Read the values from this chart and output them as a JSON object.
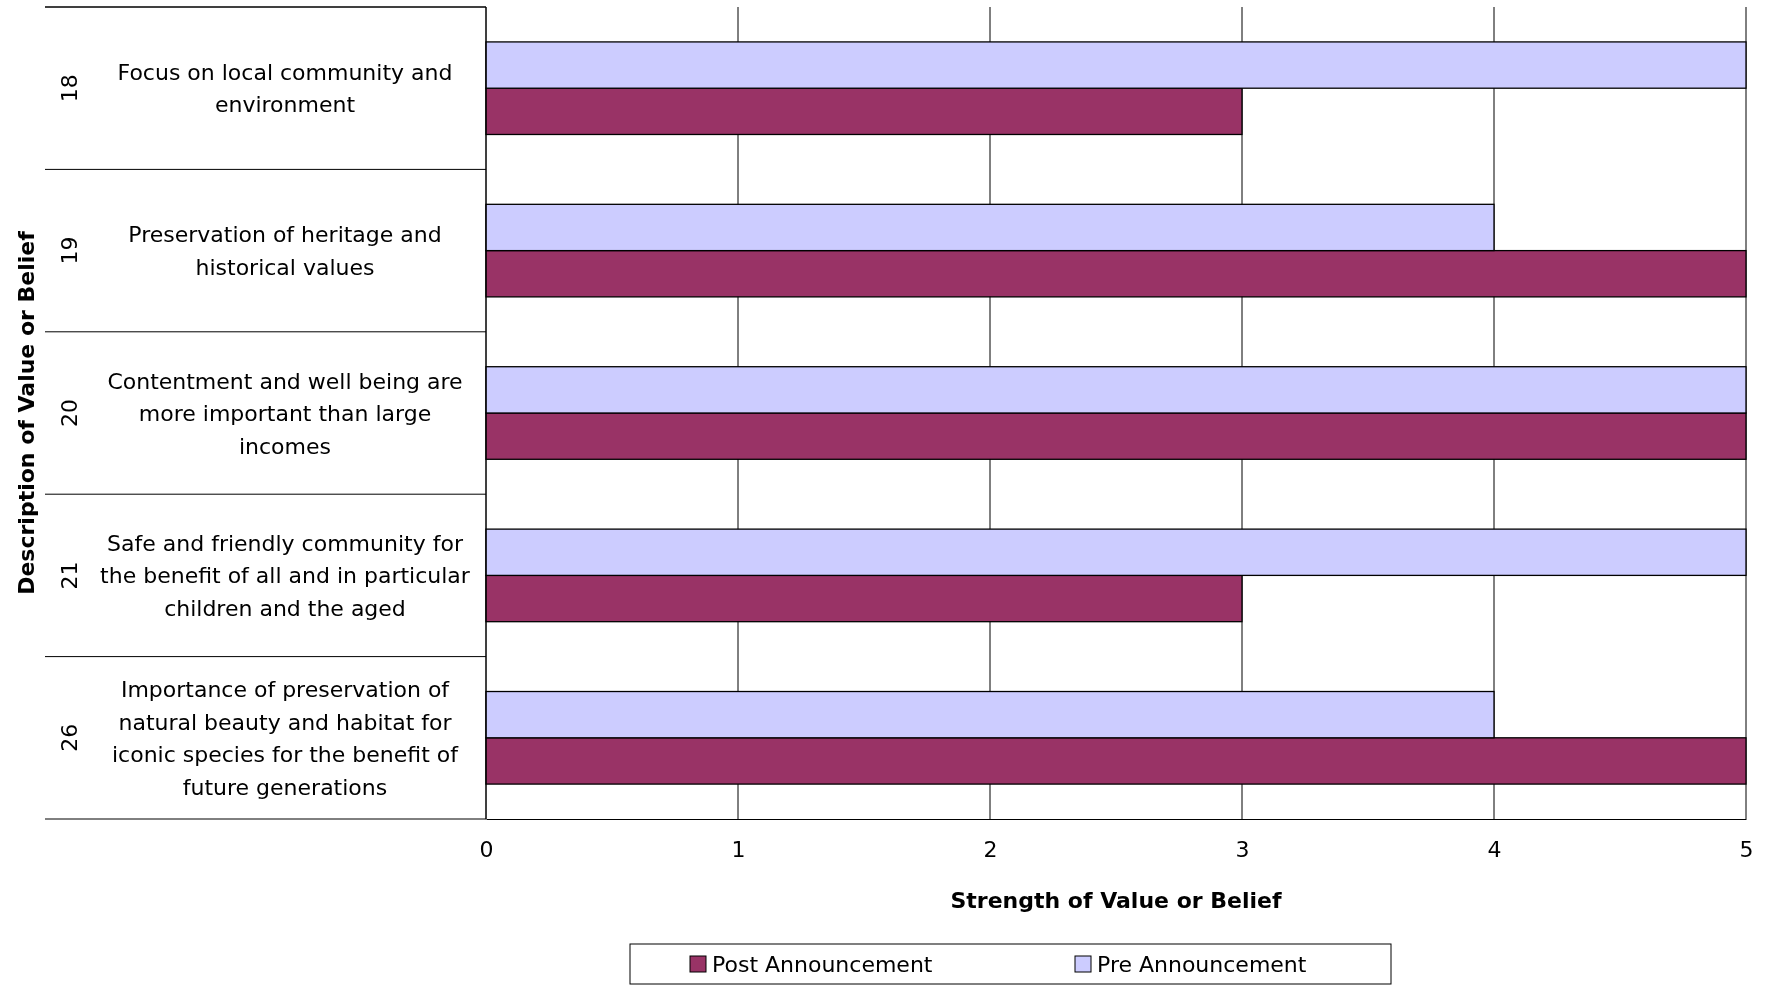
{
  "chart_data": {
    "type": "bar",
    "orientation": "horizontal",
    "xlabel": "Strength of Value or Belief",
    "ylabel": "Description of Value or Belief",
    "categories": [
      "Focus on local community and environment",
      "Preservation of heritage and historical values",
      "Contentment and well being are more important than large incomes",
      "Safe and friendly community for the benefit of all and in particular children and the aged",
      "Importance of preservation of natural beauty and habitat for iconic species for the benefit of future generations"
    ],
    "annotations": [
      "18",
      "19",
      "20",
      "21",
      "26"
    ],
    "series": [
      {
        "name": "Post Announcement",
        "color": "#993366",
        "values": [
          3,
          5,
          5,
          3,
          5
        ]
      },
      {
        "name": "Pre Announcement",
        "color": "#ccccff",
        "values": [
          5,
          4,
          5,
          5,
          4
        ]
      }
    ],
    "xlim": [
      0,
      5
    ],
    "xticks": [
      0,
      1,
      2,
      3,
      4,
      5
    ],
    "grid": "x",
    "legend": "bottom"
  }
}
